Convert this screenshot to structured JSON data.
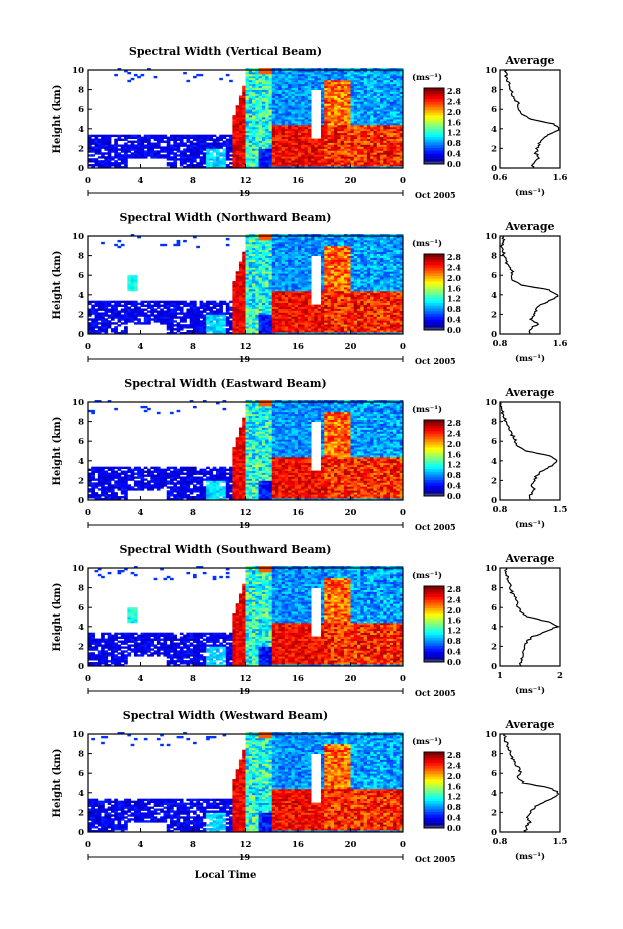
{
  "figure": {
    "xlabel": "Local Time",
    "date_label": "Oct 2005",
    "day_label": "19",
    "colorbar_unit": "(ms⁻¹)",
    "colorbar_ticks": [
      "2.8",
      "2.4",
      "2.0",
      "1.6",
      "1.2",
      "0.8",
      "0.4",
      "0.0"
    ],
    "avg_title": "Average",
    "avg_xlabel": "(ms⁻¹)"
  },
  "chart_data": [
    {
      "type": "heatmap",
      "title": "Spectral Width (Vertical Beam)",
      "ylabel": "Height (km)",
      "xlim": [
        0,
        24
      ],
      "ylim": [
        0,
        10
      ],
      "x_ticks": [
        "0",
        "4",
        "8",
        "12",
        "16",
        "20",
        "0"
      ],
      "y_ticks": [
        "0",
        "2",
        "4",
        "6",
        "8",
        "10"
      ],
      "colorbar_range": [
        0.0,
        2.8
      ],
      "profile": {
        "title": "Average",
        "xlim": [
          0.6,
          1.6
        ],
        "x_ticks": [
          "0.6",
          "1.6"
        ],
        "y_ticks": [
          "0",
          "2",
          "4",
          "6",
          "8",
          "10"
        ],
        "heights": [
          0.5,
          1.0,
          1.5,
          2.0,
          2.5,
          3.0,
          3.5,
          4.0,
          4.5,
          5.0,
          5.5,
          6.0,
          6.5,
          7.0,
          7.5,
          8.0,
          8.5,
          9.0,
          9.5
        ],
        "values": [
          1.15,
          1.25,
          1.2,
          1.22,
          1.25,
          1.3,
          1.45,
          1.6,
          1.5,
          1.1,
          0.95,
          0.9,
          0.92,
          0.85,
          0.8,
          0.78,
          0.75,
          0.72,
          0.7
        ]
      }
    },
    {
      "type": "heatmap",
      "title": "Spectral Width (Northward Beam)",
      "ylabel": "Height (km)",
      "xlim": [
        0,
        24
      ],
      "ylim": [
        0,
        10
      ],
      "x_ticks": [
        "0",
        "4",
        "8",
        "12",
        "16",
        "20",
        "0"
      ],
      "y_ticks": [
        "0",
        "2",
        "4",
        "6",
        "8",
        "10"
      ],
      "colorbar_range": [
        0.0,
        2.8
      ],
      "profile": {
        "title": "Average",
        "xlim": [
          0.8,
          1.6
        ],
        "x_ticks": [
          "0.8",
          "1.6"
        ],
        "y_ticks": [
          "0",
          "2",
          "4",
          "6",
          "8",
          "10"
        ],
        "heights": [
          0.5,
          1.0,
          1.5,
          2.0,
          2.5,
          3.0,
          3.5,
          4.0,
          4.5,
          5.0,
          5.5,
          6.0,
          6.5,
          7.0,
          7.5,
          8.0,
          8.5,
          9.0,
          9.5
        ],
        "values": [
          1.2,
          1.3,
          1.22,
          1.25,
          1.28,
          1.35,
          1.5,
          1.58,
          1.45,
          1.1,
          0.98,
          0.95,
          0.97,
          0.9,
          0.88,
          0.86,
          0.84,
          0.82,
          0.85
        ]
      }
    },
    {
      "type": "heatmap",
      "title": "Spectral Width (Eastward Beam)",
      "ylabel": "Height (km)",
      "xlim": [
        0,
        24
      ],
      "ylim": [
        0,
        10
      ],
      "x_ticks": [
        "0",
        "4",
        "8",
        "12",
        "16",
        "20",
        "0"
      ],
      "y_ticks": [
        "0",
        "2",
        "4",
        "6",
        "8",
        "10"
      ],
      "colorbar_range": [
        0.0,
        2.8
      ],
      "profile": {
        "title": "Average",
        "xlim": [
          0.8,
          1.5
        ],
        "x_ticks": [
          "0.8",
          "1.5"
        ],
        "y_ticks": [
          "0",
          "2",
          "4",
          "6",
          "8",
          "10"
        ],
        "heights": [
          0.5,
          1.0,
          1.5,
          2.0,
          2.5,
          3.0,
          3.5,
          4.0,
          4.5,
          5.0,
          5.5,
          6.0,
          6.5,
          7.0,
          7.5,
          8.0,
          8.5,
          9.0,
          9.5
        ],
        "values": [
          1.15,
          1.2,
          1.18,
          1.2,
          1.22,
          1.3,
          1.4,
          1.48,
          1.4,
          1.1,
          1.0,
          0.98,
          0.95,
          0.92,
          0.9,
          0.87,
          0.85,
          0.83,
          0.82
        ]
      }
    },
    {
      "type": "heatmap",
      "title": "Spectral Width (Southward Beam)",
      "ylabel": "Height (km)",
      "xlim": [
        0,
        24
      ],
      "ylim": [
        0,
        10
      ],
      "x_ticks": [
        "0",
        "4",
        "8",
        "12",
        "16",
        "20",
        "0"
      ],
      "y_ticks": [
        "0",
        "2",
        "4",
        "6",
        "8",
        "10"
      ],
      "colorbar_range": [
        0.0,
        2.8
      ],
      "profile": {
        "title": "Average",
        "xlim": [
          1,
          2
        ],
        "x_ticks": [
          "1",
          "2"
        ],
        "y_ticks": [
          "0",
          "2",
          "4",
          "6",
          "8",
          "10"
        ],
        "heights": [
          0.5,
          1.0,
          1.5,
          2.0,
          2.5,
          3.0,
          3.5,
          4.0,
          4.5,
          5.0,
          5.5,
          6.0,
          6.5,
          7.0,
          7.5,
          8.0,
          8.5,
          9.0,
          9.5
        ],
        "values": [
          1.35,
          1.4,
          1.38,
          1.4,
          1.45,
          1.55,
          1.75,
          1.95,
          1.8,
          1.45,
          1.35,
          1.3,
          1.28,
          1.25,
          1.2,
          1.18,
          1.15,
          1.12,
          1.1
        ]
      }
    },
    {
      "type": "heatmap",
      "title": "Spectral Width (Westward Beam)",
      "ylabel": "Height (km)",
      "xlim": [
        0,
        24
      ],
      "ylim": [
        0,
        10
      ],
      "x_ticks": [
        "0",
        "4",
        "8",
        "12",
        "16",
        "20",
        "0"
      ],
      "y_ticks": [
        "0",
        "2",
        "4",
        "6",
        "8",
        "10"
      ],
      "colorbar_range": [
        0.0,
        2.8
      ],
      "profile": {
        "title": "Average",
        "xlim": [
          0.8,
          1.5
        ],
        "x_ticks": [
          "0.8",
          "1.5"
        ],
        "y_ticks": [
          "0",
          "2",
          "4",
          "6",
          "8",
          "10"
        ],
        "heights": [
          0.5,
          1.0,
          1.5,
          2.0,
          2.5,
          3.0,
          3.5,
          4.0,
          4.5,
          5.0,
          5.5,
          6.0,
          6.5,
          7.0,
          7.5,
          8.0,
          8.5,
          9.0,
          9.5
        ],
        "values": [
          1.1,
          1.15,
          1.12,
          1.15,
          1.2,
          1.3,
          1.42,
          1.48,
          1.38,
          1.08,
          1.0,
          1.05,
          1.02,
          0.98,
          0.95,
          0.92,
          0.9,
          0.88,
          0.86
        ]
      }
    }
  ]
}
